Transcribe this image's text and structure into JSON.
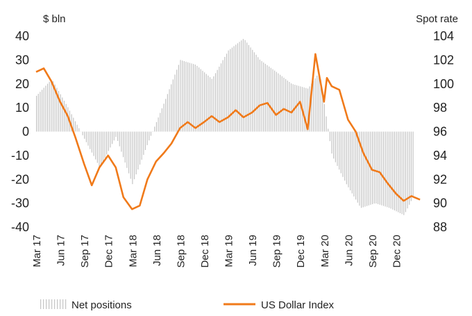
{
  "chart_data": {
    "type": "bar+line",
    "title": "",
    "left_axis": {
      "label": "$ bln",
      "ticks": [
        40,
        30,
        20,
        10,
        0,
        -10,
        -20,
        -30,
        -40
      ],
      "ylim": [
        -40,
        40
      ]
    },
    "right_axis": {
      "label": "Spot rate",
      "ticks": [
        104,
        102,
        100,
        98,
        96,
        94,
        92,
        90,
        88
      ],
      "ylim": [
        88,
        104
      ]
    },
    "x_tick_labels": [
      "Mar 17",
      "Jun 17",
      "Sep 17",
      "Dec 17",
      "Mar 18",
      "Jun 18",
      "Sep 18",
      "Dec 18",
      "Mar 19",
      "Jun 19",
      "Sep 19",
      "Dec 19",
      "Mar 20",
      "Jun 20",
      "Sep 20",
      "Dec 20"
    ],
    "x_range": [
      "2017-03",
      "2021-02"
    ],
    "legend": {
      "position": "bottom",
      "items": [
        "Net positions",
        "US Dollar Index"
      ]
    },
    "colors": {
      "bars": "#c4c4c4",
      "line": "#f07a1a"
    },
    "series": [
      {
        "name": "Net positions",
        "axis": "left",
        "kind": "bar",
        "x": [
          2017.17,
          2017.33,
          2017.5,
          2017.67,
          2017.83,
          2018.0,
          2018.17,
          2018.33,
          2018.5,
          2018.67,
          2018.83,
          2019.0,
          2019.17,
          2019.33,
          2019.5,
          2019.67,
          2019.83,
          2020.0,
          2020.12,
          2020.25,
          2020.4,
          2020.55,
          2020.7,
          2020.85,
          2021.0,
          2021.1
        ],
        "y": [
          15,
          22,
          10,
          -3,
          -15,
          -2,
          -22,
          -5,
          12,
          30,
          28,
          22,
          34,
          39,
          30,
          25,
          20,
          18,
          25,
          -10,
          -22,
          -32,
          -30,
          -32,
          -35,
          -27
        ]
      },
      {
        "name": "US Dollar Index",
        "axis": "right",
        "kind": "line",
        "x": [
          2017.17,
          2017.25,
          2017.33,
          2017.42,
          2017.5,
          2017.58,
          2017.67,
          2017.75,
          2017.83,
          2017.92,
          2018.0,
          2018.08,
          2018.17,
          2018.25,
          2018.33,
          2018.42,
          2018.5,
          2018.58,
          2018.67,
          2018.75,
          2018.83,
          2018.92,
          2019.0,
          2019.08,
          2019.17,
          2019.25,
          2019.33,
          2019.42,
          2019.5,
          2019.58,
          2019.67,
          2019.75,
          2019.83,
          2019.92,
          2020.0,
          2020.08,
          2020.17,
          2020.2,
          2020.25,
          2020.33,
          2020.42,
          2020.5,
          2020.58,
          2020.67,
          2020.75,
          2020.83,
          2020.92,
          2021.0,
          2021.08,
          2021.17
        ],
        "y": [
          101,
          101.3,
          100.2,
          98.5,
          97.3,
          95.5,
          93.3,
          91.5,
          93,
          94,
          93,
          90.5,
          89.5,
          89.8,
          92,
          93.5,
          94.2,
          95,
          96.3,
          96.8,
          96.3,
          96.8,
          97.3,
          96.8,
          97.2,
          97.8,
          97.2,
          97.6,
          98.2,
          98.4,
          97.4,
          97.9,
          97.6,
          98.5,
          96.2,
          102.5,
          98.5,
          100.5,
          99.8,
          99.5,
          97,
          96,
          94.2,
          92.8,
          92.6,
          91.7,
          90.8,
          90.2,
          90.6,
          90.3
        ]
      }
    ]
  }
}
